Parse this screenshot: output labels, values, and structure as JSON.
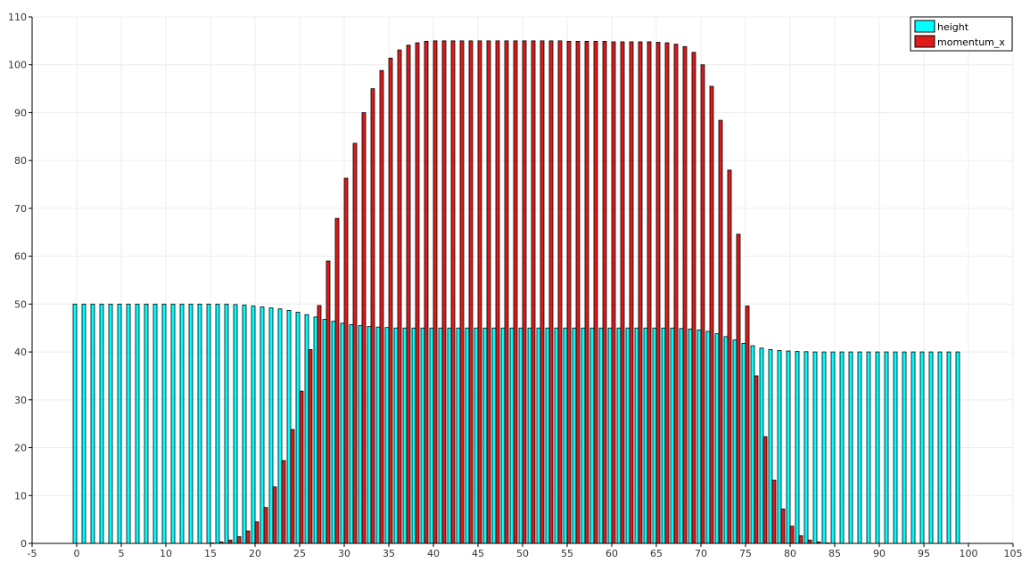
{
  "chart_data": {
    "type": "bar",
    "title": "",
    "xlabel": "",
    "ylabel": "",
    "xlim": [
      -5,
      105
    ],
    "ylim": [
      0,
      110
    ],
    "x_ticks": [
      "-5",
      "0",
      "5",
      "10",
      "15",
      "20",
      "25",
      "30",
      "35",
      "40",
      "45",
      "50",
      "55",
      "60",
      "65",
      "70",
      "75",
      "80",
      "85",
      "90",
      "95",
      "100",
      "105"
    ],
    "y_ticks": [
      "0",
      "10",
      "20",
      "30",
      "40",
      "50",
      "60",
      "70",
      "80",
      "90",
      "100",
      "110"
    ],
    "grid": true,
    "legend": "top-right",
    "x": [
      0,
      1,
      2,
      3,
      4,
      5,
      6,
      7,
      8,
      9,
      10,
      11,
      12,
      13,
      14,
      15,
      16,
      17,
      18,
      19,
      20,
      21,
      22,
      23,
      24,
      25,
      26,
      27,
      28,
      29,
      30,
      31,
      32,
      33,
      34,
      35,
      36,
      37,
      38,
      39,
      40,
      41,
      42,
      43,
      44,
      45,
      46,
      47,
      48,
      49,
      50,
      51,
      52,
      53,
      54,
      55,
      56,
      57,
      58,
      59,
      60,
      61,
      62,
      63,
      64,
      65,
      66,
      67,
      68,
      69,
      70,
      71,
      72,
      73,
      74,
      75,
      76,
      77,
      78,
      79,
      80,
      81,
      82,
      83,
      84,
      85,
      86,
      87,
      88,
      89,
      90,
      91,
      92,
      93,
      94,
      95,
      96,
      97,
      98,
      99
    ],
    "series": [
      {
        "name": "height",
        "color": "#00ffff",
        "values": [
          50,
          50,
          50,
          50,
          50,
          50,
          50,
          50,
          50,
          50,
          50,
          50,
          50,
          50,
          50,
          50,
          50,
          50,
          49.9,
          49.8,
          49.6,
          49.4,
          49.2,
          49,
          48.7,
          48.3,
          47.8,
          47.3,
          46.8,
          46.4,
          46,
          45.7,
          45.5,
          45.3,
          45.2,
          45.1,
          45,
          45,
          45,
          45,
          45,
          45,
          45,
          45,
          45,
          45,
          45,
          45,
          45,
          45,
          45,
          45,
          45,
          45,
          45,
          45,
          45,
          45,
          45,
          45,
          45,
          45,
          45,
          45,
          45,
          45,
          45,
          45,
          44.9,
          44.8,
          44.6,
          44.3,
          43.8,
          43.2,
          42.5,
          41.8,
          41.3,
          40.8,
          40.5,
          40.3,
          40.2,
          40.1,
          40.05,
          40,
          40,
          40,
          40,
          40,
          40,
          40,
          40,
          40,
          40,
          40,
          40,
          40,
          40,
          40,
          40,
          40
        ]
      },
      {
        "name": "momentum_x",
        "color": "#e01a1a",
        "values": [
          0,
          0,
          0,
          0,
          0,
          0,
          0,
          0,
          0,
          0,
          0,
          0,
          0,
          0,
          0,
          0.1,
          0.3,
          0.7,
          1.4,
          2.6,
          4.5,
          7.5,
          11.8,
          17.3,
          23.8,
          31.8,
          40.5,
          49.7,
          59,
          67.9,
          76.3,
          83.6,
          90,
          95,
          98.8,
          101.4,
          103.1,
          104.1,
          104.6,
          104.9,
          105,
          105,
          105,
          105,
          105,
          105,
          105,
          105,
          105,
          105,
          105,
          105,
          105,
          105,
          105,
          104.9,
          104.9,
          104.9,
          104.9,
          104.9,
          104.8,
          104.8,
          104.8,
          104.8,
          104.8,
          104.7,
          104.6,
          104.3,
          103.8,
          102.6,
          100,
          95.5,
          88.4,
          78,
          64.6,
          49.6,
          35,
          22.3,
          13.2,
          7.2,
          3.6,
          1.6,
          0.7,
          0.3,
          0.1,
          0,
          0,
          0,
          0,
          0,
          0,
          0,
          0,
          0,
          0,
          0,
          0,
          0,
          0,
          0
        ]
      }
    ]
  }
}
